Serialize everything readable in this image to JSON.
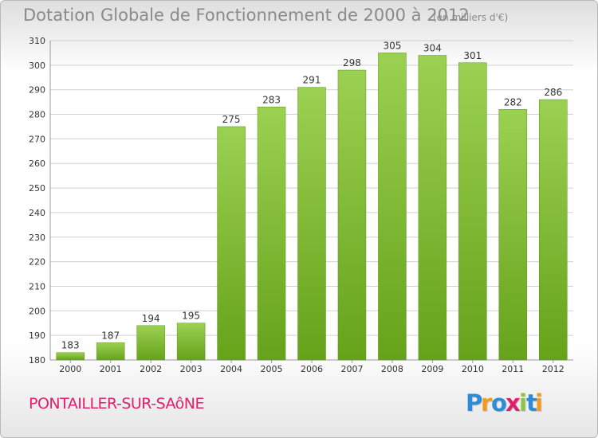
{
  "header": {
    "title": "Dotation Globale de Fonctionnement de 2000 à 2012",
    "unit": "(en milliers d'€)"
  },
  "footer": {
    "city": "PONTAILLER-SUR-SAôNE",
    "logo_text": "Proxiti",
    "logo_letters": [
      {
        "ch": "P",
        "color": "#2f8ad8"
      },
      {
        "ch": "r",
        "color": "#f39c1b"
      },
      {
        "ch": "o",
        "color": "#2f8ad8"
      },
      {
        "ch": "x",
        "color": "#e0206c"
      },
      {
        "ch": "i",
        "color": "#8cc63f"
      },
      {
        "ch": "t",
        "color": "#2f8ad8"
      },
      {
        "ch": "i",
        "color": "#f39c1b"
      }
    ]
  },
  "colors": {
    "bar_top": "#9bd152",
    "bar_bottom": "#66a21a",
    "grid": "#d0d0d0",
    "axis_text": "#333333",
    "title": "#8a8a8a",
    "city": "#e0206c"
  },
  "chart_data": {
    "type": "bar",
    "categories": [
      "2000",
      "2001",
      "2002",
      "2003",
      "2004",
      "2005",
      "2006",
      "2007",
      "2008",
      "2009",
      "2010",
      "2011",
      "2012"
    ],
    "values": [
      183,
      187,
      194,
      195,
      275,
      283,
      291,
      298,
      305,
      304,
      301,
      282,
      286
    ],
    "ylim": [
      180,
      310
    ],
    "yticks": [
      180,
      190,
      200,
      210,
      220,
      230,
      240,
      250,
      260,
      270,
      280,
      290,
      300,
      310
    ],
    "grid": true,
    "data_labels": true
  }
}
